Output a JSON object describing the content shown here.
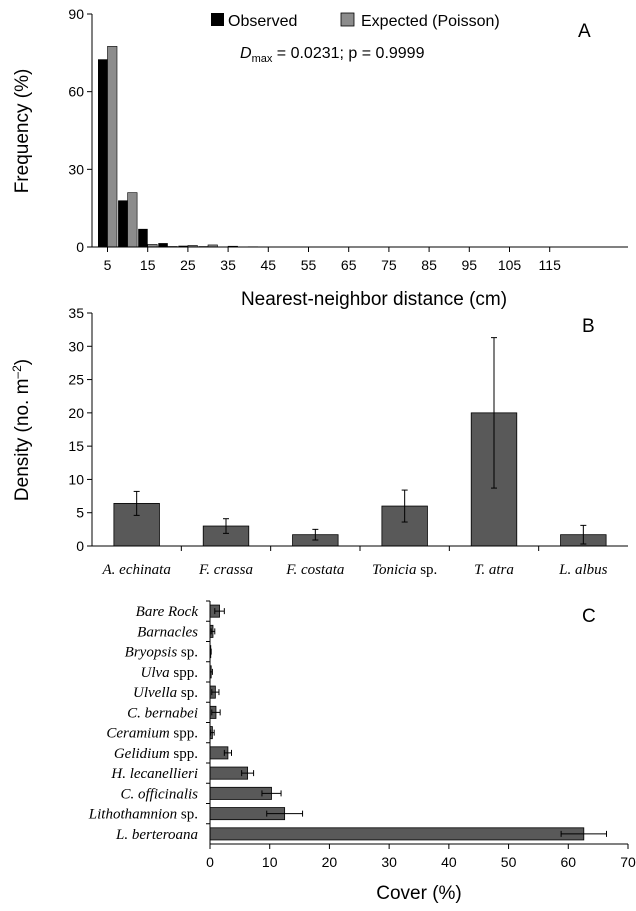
{
  "colors": {
    "observed": "#000000",
    "expected": "#8c8c8c",
    "bar": "#595959",
    "axis": "#000000"
  },
  "chart_data": [
    {
      "panel_letter": "A",
      "type": "bar",
      "ylabel": "Frequency (%)",
      "xlabel": "Nearest-neighbor distance (cm)",
      "ylim": [
        0,
        90
      ],
      "yticks": [
        "0",
        "30",
        "60",
        "90"
      ],
      "xtick_labels": [
        "5",
        "15",
        "25",
        "35",
        "45",
        "55",
        "65",
        "75",
        "85",
        "95",
        "105",
        "115"
      ],
      "categories": [
        "5",
        "10",
        "15",
        "20",
        "25",
        "30",
        "35",
        "40",
        "45",
        "50",
        "55",
        "60",
        "65",
        "70",
        "75",
        "80",
        "85",
        "90",
        "95",
        "100",
        "105",
        "110",
        "115",
        "120"
      ],
      "series": [
        {
          "name": "Observed",
          "values": [
            72.5,
            18,
            7,
            1.5,
            0.5,
            0.3,
            0,
            0,
            0,
            0,
            0,
            0,
            0,
            0,
            0,
            0,
            0,
            0,
            0,
            0,
            0,
            0,
            0,
            0
          ]
        },
        {
          "name": "Expected (Poisson)",
          "values": [
            77.5,
            21,
            1,
            0.2,
            0.6,
            0.8,
            0.3,
            0.1,
            0,
            0,
            0,
            0,
            0,
            0,
            0,
            0,
            0,
            0,
            0,
            0,
            0,
            0,
            0,
            0
          ]
        }
      ],
      "annotation": {
        "d_symbol": "D",
        "d_subscript": "max",
        "text": " = 0.0231; p = 0.9999"
      }
    },
    {
      "panel_letter": "B",
      "type": "bar",
      "ylabel_main": "Density (no. m",
      "ylabel_sup": "–2",
      "ylabel_end": ")",
      "ylim": [
        0,
        35
      ],
      "yticks": [
        "0",
        "5",
        "10",
        "15",
        "20",
        "25",
        "30",
        "35"
      ],
      "categories": [
        {
          "italic": "A. echinata",
          "roman": ""
        },
        {
          "italic": "F. crassa",
          "roman": ""
        },
        {
          "italic": "F. costata",
          "roman": ""
        },
        {
          "italic": "Tonicia",
          "roman": " sp."
        },
        {
          "italic": "T. atra",
          "roman": ""
        },
        {
          "italic": "L. albus",
          "roman": ""
        }
      ],
      "values": [
        6.4,
        3.0,
        1.7,
        6.0,
        20.0,
        1.7
      ],
      "errors": [
        1.8,
        1.1,
        0.8,
        2.4,
        11.3,
        1.4
      ]
    },
    {
      "panel_letter": "C",
      "type": "bar",
      "orientation": "horizontal",
      "xlabel": "Cover (%)",
      "xlim": [
        0,
        70
      ],
      "xticks": [
        "0",
        "10",
        "20",
        "30",
        "40",
        "50",
        "60",
        "70"
      ],
      "categories": [
        {
          "italic": "Bare Rock",
          "roman": ""
        },
        {
          "italic": "Barnacles",
          "roman": ""
        },
        {
          "italic": "Bryopsis",
          "roman": " sp."
        },
        {
          "italic": "Ulva",
          "roman": " spp."
        },
        {
          "italic": "Ulvella",
          "roman": " sp."
        },
        {
          "italic": "C. bernabei",
          "roman": ""
        },
        {
          "italic": "Ceramium",
          "roman": " spp."
        },
        {
          "italic": "Gelidium",
          "roman": " spp."
        },
        {
          "italic": "H. lecanellieri",
          "roman": ""
        },
        {
          "italic": "C. officinalis",
          "roman": ""
        },
        {
          "italic": "Lithothamnion",
          "roman": " sp."
        },
        {
          "italic": "L. berteroana",
          "roman": ""
        }
      ],
      "values": [
        1.6,
        0.5,
        0.1,
        0.2,
        0.9,
        1.0,
        0.4,
        3.0,
        6.3,
        10.3,
        12.5,
        62.6
      ],
      "errors": [
        0.8,
        0.3,
        0.1,
        0.2,
        0.6,
        0.7,
        0.3,
        0.6,
        1.0,
        1.6,
        3.0,
        3.8
      ]
    }
  ]
}
